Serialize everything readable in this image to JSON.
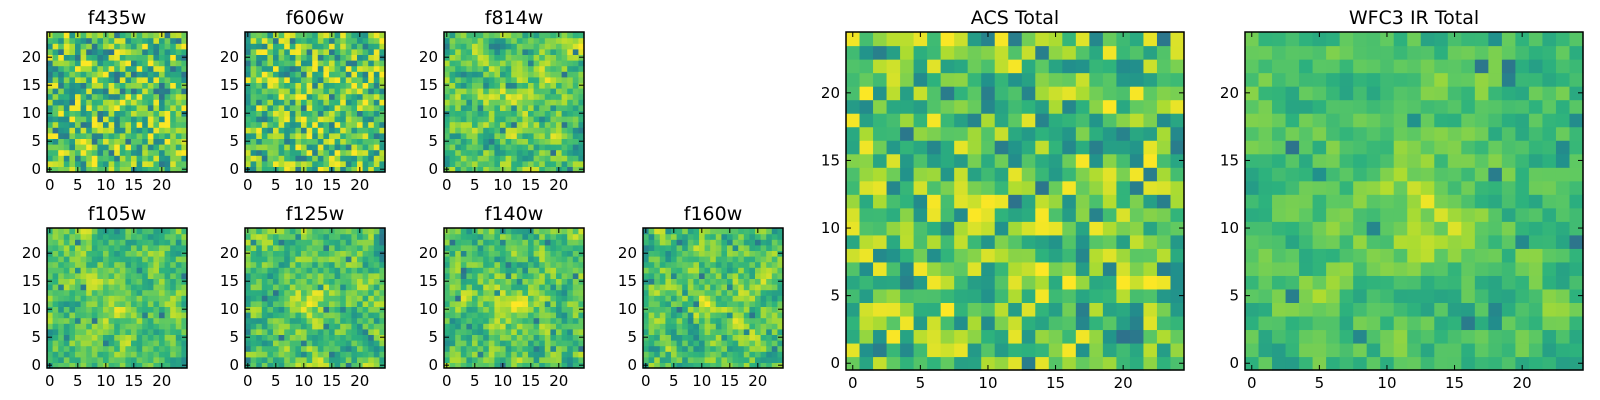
{
  "chart_data": [
    {
      "type": "heatmap",
      "title": "f435w",
      "xticks": [
        "0",
        "5",
        "10",
        "15",
        "20"
      ],
      "yticks": [
        "0",
        "5",
        "10",
        "15",
        "20"
      ],
      "xlim": [
        -0.5,
        24.5
      ],
      "ylim": [
        -0.5,
        24.5
      ],
      "grid_size": 25,
      "blob": 0.0,
      "seed": 11
    },
    {
      "type": "heatmap",
      "title": "f606w",
      "xticks": [
        "0",
        "5",
        "10",
        "15",
        "20"
      ],
      "yticks": [
        "0",
        "5",
        "10",
        "15",
        "20"
      ],
      "xlim": [
        -0.5,
        24.5
      ],
      "ylim": [
        -0.5,
        24.5
      ],
      "grid_size": 25,
      "blob": 0.05,
      "seed": 23
    },
    {
      "type": "heatmap",
      "title": "f814w",
      "xticks": [
        "0",
        "5",
        "10",
        "15",
        "20"
      ],
      "yticks": [
        "0",
        "5",
        "10",
        "15",
        "20"
      ],
      "xlim": [
        -0.5,
        24.5
      ],
      "ylim": [
        -0.5,
        24.5
      ],
      "grid_size": 25,
      "blob": 0.25,
      "seed": 37
    },
    {
      "type": "heatmap",
      "title": "f105w",
      "xticks": [
        "0",
        "5",
        "10",
        "15",
        "20"
      ],
      "yticks": [
        "0",
        "5",
        "10",
        "15",
        "20"
      ],
      "xlim": [
        -0.5,
        24.5
      ],
      "ylim": [
        -0.5,
        24.5
      ],
      "grid_size": 25,
      "blob": 0.35,
      "seed": 41
    },
    {
      "type": "heatmap",
      "title": "f125w",
      "xticks": [
        "0",
        "5",
        "10",
        "15",
        "20"
      ],
      "yticks": [
        "0",
        "5",
        "10",
        "15",
        "20"
      ],
      "xlim": [
        -0.5,
        24.5
      ],
      "ylim": [
        -0.5,
        24.5
      ],
      "grid_size": 25,
      "blob": 0.3,
      "seed": 53
    },
    {
      "type": "heatmap",
      "title": "f140w",
      "xticks": [
        "0",
        "5",
        "10",
        "15",
        "20"
      ],
      "yticks": [
        "0",
        "5",
        "10",
        "15",
        "20"
      ],
      "xlim": [
        -0.5,
        24.5
      ],
      "ylim": [
        -0.5,
        24.5
      ],
      "grid_size": 25,
      "blob": 0.3,
      "seed": 67
    },
    {
      "type": "heatmap",
      "title": "f160w",
      "xticks": [
        "0",
        "5",
        "10",
        "15",
        "20"
      ],
      "yticks": [
        "0",
        "5",
        "10",
        "15",
        "20"
      ],
      "xlim": [
        -0.5,
        24.5
      ],
      "ylim": [
        -0.5,
        24.5
      ],
      "grid_size": 25,
      "blob": 0.3,
      "seed": 79
    },
    {
      "type": "heatmap",
      "title": "ACS Total",
      "xticks": [
        "0",
        "5",
        "10",
        "15",
        "20"
      ],
      "yticks": [
        "0",
        "5",
        "10",
        "15",
        "20"
      ],
      "xlim": [
        -0.5,
        24.5
      ],
      "ylim": [
        -0.5,
        24.5
      ],
      "grid_size": 25,
      "blob": 0.1,
      "seed": 97
    },
    {
      "type": "heatmap",
      "title": "WFC3 IR Total",
      "xticks": [
        "0",
        "5",
        "10",
        "15",
        "20"
      ],
      "yticks": [
        "0",
        "5",
        "10",
        "15",
        "20"
      ],
      "xlim": [
        -0.5,
        24.5
      ],
      "ylim": [
        -0.5,
        24.5
      ],
      "grid_size": 25,
      "blob": 0.5,
      "seed": 131
    }
  ],
  "colormap": [
    "#440154",
    "#3b528b",
    "#21918c",
    "#2db27d",
    "#5ec962",
    "#addc30",
    "#fde725"
  ]
}
